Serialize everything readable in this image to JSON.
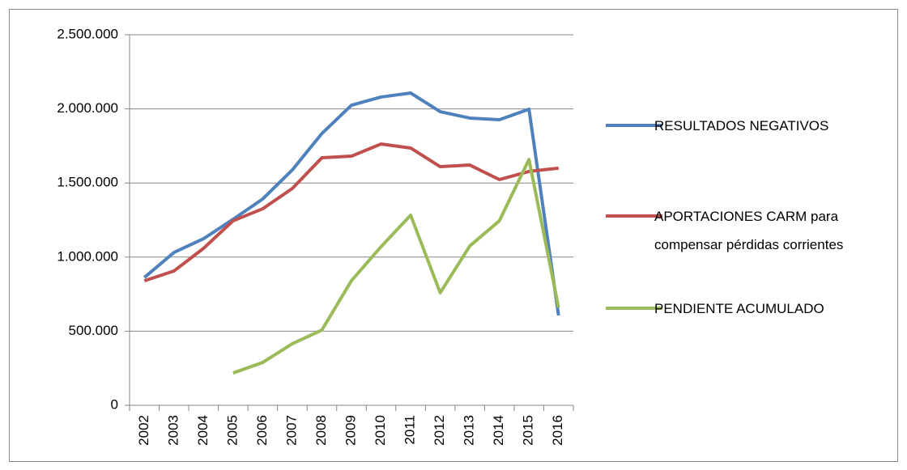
{
  "chart_data": {
    "type": "line",
    "categories": [
      "2002",
      "2003",
      "2004",
      "2005",
      "2006",
      "2007",
      "2008",
      "2009",
      "2010",
      "2011",
      "2012",
      "2013",
      "2014",
      "2015",
      "2016"
    ],
    "series": [
      {
        "name": "RESULTADOS NEGATIVOS",
        "color": "#4f81bd",
        "values": [
          862000,
          1031000,
          1124000,
          1255000,
          1392000,
          1588000,
          1834000,
          2025000,
          2080000,
          2107000,
          1981000,
          1938000,
          1927000,
          1998000,
          606000
        ]
      },
      {
        "name": "APORTACIONES CARM para compensar pérdidas corrientes",
        "color": "#c0504d",
        "values": [
          840000,
          906000,
          1059000,
          1245000,
          1326000,
          1463000,
          1670000,
          1681000,
          1763000,
          1736000,
          1610000,
          1621000,
          1523000,
          1578000,
          1600000
        ]
      },
      {
        "name": "PENDIENTE ACUMULADO",
        "color": "#9bbb59",
        "values": [
          null,
          null,
          null,
          218000,
          289000,
          415000,
          508000,
          841000,
          1070000,
          1283000,
          759000,
          1075000,
          1245000,
          1659000,
          660000
        ]
      }
    ],
    "ylim": [
      0,
      2500000
    ],
    "yticks": [
      0,
      {
        "value": 500000,
        "label": "500.000"
      },
      {
        "value": 1000000,
        "label": "1.000.000"
      },
      {
        "value": 1500000,
        "label": "1.500.000"
      },
      {
        "value": 2000000,
        "label": "2.000.000"
      },
      {
        "value": 2500000,
        "label": "2.500.000"
      }
    ],
    "grid": true,
    "legend": "right"
  }
}
